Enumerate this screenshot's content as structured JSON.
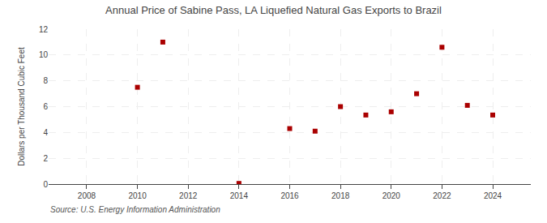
{
  "chart_data": {
    "type": "scatter",
    "title": "Annual Price of Sabine Pass, LA Liquefied Natural Gas Exports to Brazil",
    "ylabel": "Dollars per Thousand Cubic Feet",
    "annotations": [
      "Source: U.S. Energy Information Administration"
    ],
    "x": [
      2010,
      2011,
      2014,
      2016,
      2017,
      2018,
      2019,
      2020,
      2021,
      2022,
      2023,
      2024
    ],
    "values": [
      7.5,
      11.0,
      0.05,
      4.3,
      4.1,
      6.0,
      5.35,
      5.6,
      7.0,
      10.6,
      6.1,
      5.35
    ],
    "color": "#aa0000",
    "marker": "square",
    "xlim": [
      2006.5,
      2025.5
    ],
    "ylim": [
      0,
      12
    ],
    "xticks": [
      2008,
      2010,
      2012,
      2014,
      2016,
      2018,
      2020,
      2022,
      2024
    ],
    "yticks": [
      0,
      2,
      4,
      6,
      8,
      10,
      12
    ],
    "grid": true
  }
}
